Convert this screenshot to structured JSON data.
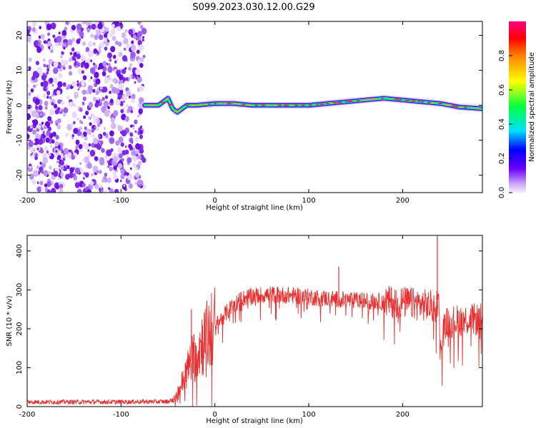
{
  "title": "S099.2023.030.12.00.G29",
  "colors": {
    "snr_line": "#e83030",
    "axis": "#000000",
    "background": "#ffffff"
  },
  "chart_data": [
    {
      "type": "heatmap",
      "xlabel": "Height of straight line (km)",
      "ylabel": "Frequency (Hz)",
      "xlim": [
        -200,
        285
      ],
      "ylim": [
        -25,
        24
      ],
      "x_ticks": [
        "-200",
        "-100",
        "0",
        "100",
        "200"
      ],
      "y_ticks": [
        "20",
        "10",
        "0",
        "-10",
        "-20"
      ],
      "colorbar": {
        "label": "Normalized spectral amplitude",
        "range": [
          0,
          1
        ],
        "ticks": [
          "0.0",
          "0.2",
          "0.4",
          "0.6",
          "0.8"
        ]
      },
      "noise_region_x": [
        -200,
        -75
      ],
      "ridge": {
        "x": [
          -75,
          -60,
          -50,
          -45,
          -40,
          -30,
          -20,
          0,
          20,
          40,
          60,
          80,
          100,
          120,
          140,
          160,
          180,
          200,
          220,
          240,
          260,
          285
        ],
        "y": [
          0,
          0,
          2,
          -1,
          -2,
          0,
          0,
          0.5,
          0.5,
          0,
          0,
          0,
          0,
          0.5,
          1,
          1.5,
          2,
          1.5,
          1,
          0.5,
          -0.5,
          -1
        ]
      }
    },
    {
      "type": "line",
      "xlabel": "Height of straight line (km)",
      "ylabel": "SNR (10 * v/v)",
      "xlim": [
        -200,
        285
      ],
      "ylim": [
        0,
        440
      ],
      "x_ticks": [
        "-200",
        "-100",
        "0",
        "100",
        "200"
      ],
      "y_ticks": [
        "0",
        "100",
        "200",
        "300",
        "400"
      ],
      "series": [
        {
          "x": [
            -200,
            -150,
            -100,
            -50,
            -42,
            -35,
            -30,
            -25,
            -20,
            -15,
            -10,
            -5,
            0,
            10,
            20,
            30,
            40,
            60,
            80,
            100,
            120,
            140,
            160,
            180,
            200,
            220,
            230,
            236,
            238,
            240,
            245,
            260,
            285
          ],
          "values": [
            12,
            12,
            12,
            13,
            20,
            60,
            90,
            120,
            140,
            160,
            175,
            190,
            205,
            235,
            262,
            278,
            285,
            288,
            286,
            282,
            278,
            274,
            272,
            270,
            268,
            262,
            258,
            250,
            300,
            140,
            215,
            222,
            225
          ]
        }
      ],
      "spikes": [
        {
          "x": 237,
          "y": 440
        },
        {
          "x": 132,
          "y": 360
        },
        {
          "x": -25,
          "y": 250
        }
      ]
    }
  ]
}
